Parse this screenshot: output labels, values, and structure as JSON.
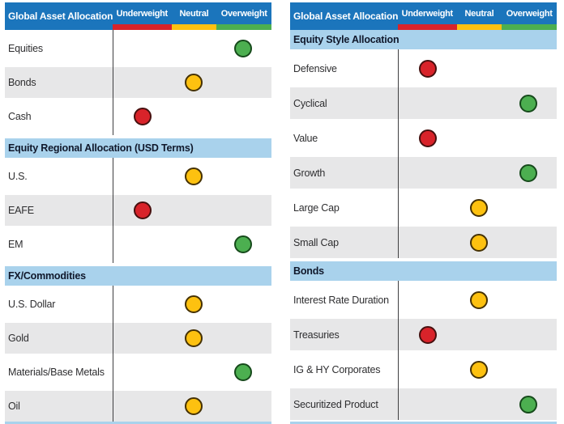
{
  "colors": {
    "header_blue": "#1B75BC",
    "section_blue": "#A9D2EC",
    "row_alt_gray": "#E7E7E8",
    "underweight_red": "#D8232A",
    "neutral_yellow": "#FDC110",
    "overweight_green": "#4CAF50",
    "divider_line": "#3F3F41",
    "bottom_rule_blue": "#A9D2EC"
  },
  "chart_data": [
    {
      "type": "table",
      "title": "Global Asset Allocation",
      "columns": [
        "Underweight",
        "Neutral",
        "Overweight"
      ],
      "column_colors": [
        "#D8232A",
        "#FDC110",
        "#4CAF50"
      ],
      "legend_position": "top",
      "sections": [
        {
          "title": "",
          "rows": [
            {
              "label": "Equities",
              "rating": "Overweight"
            },
            {
              "label": "Bonds",
              "rating": "Neutral"
            },
            {
              "label": "Cash",
              "rating": "Underweight"
            }
          ]
        },
        {
          "title": "Equity Regional Allocation (USD Terms)",
          "rows": [
            {
              "label": "U.S.",
              "rating": "Neutral"
            },
            {
              "label": "EAFE",
              "rating": "Underweight"
            },
            {
              "label": "EM",
              "rating": "Overweight"
            }
          ]
        },
        {
          "title": "FX/Commodities",
          "rows": [
            {
              "label": "U.S. Dollar",
              "rating": "Neutral"
            },
            {
              "label": "Gold",
              "rating": "Neutral"
            },
            {
              "label": "Materials/Base Metals",
              "rating": "Overweight"
            },
            {
              "label": "Oil",
              "rating": "Neutral"
            }
          ]
        }
      ]
    },
    {
      "type": "table",
      "title": "Global Asset Allocation",
      "columns": [
        "Underweight",
        "Neutral",
        "Overweight"
      ],
      "column_colors": [
        "#D8232A",
        "#FDC110",
        "#4CAF50"
      ],
      "legend_position": "top",
      "sections": [
        {
          "title": "Equity Style Allocation",
          "rows": [
            {
              "label": "Defensive",
              "rating": "Underweight"
            },
            {
              "label": "Cyclical",
              "rating": "Overweight"
            },
            {
              "label": "Value",
              "rating": "Underweight"
            },
            {
              "label": "Growth",
              "rating": "Overweight"
            },
            {
              "label": "Large Cap",
              "rating": "Neutral"
            },
            {
              "label": "Small Cap",
              "rating": "Neutral"
            }
          ]
        },
        {
          "title": "Bonds",
          "rows": [
            {
              "label": "Interest Rate Duration",
              "rating": "Neutral"
            },
            {
              "label": "Treasuries",
              "rating": "Underweight"
            },
            {
              "label": "IG & HY Corporates",
              "rating": "Neutral"
            },
            {
              "label": "Securitized Product",
              "rating": "Overweight"
            }
          ]
        }
      ]
    }
  ]
}
